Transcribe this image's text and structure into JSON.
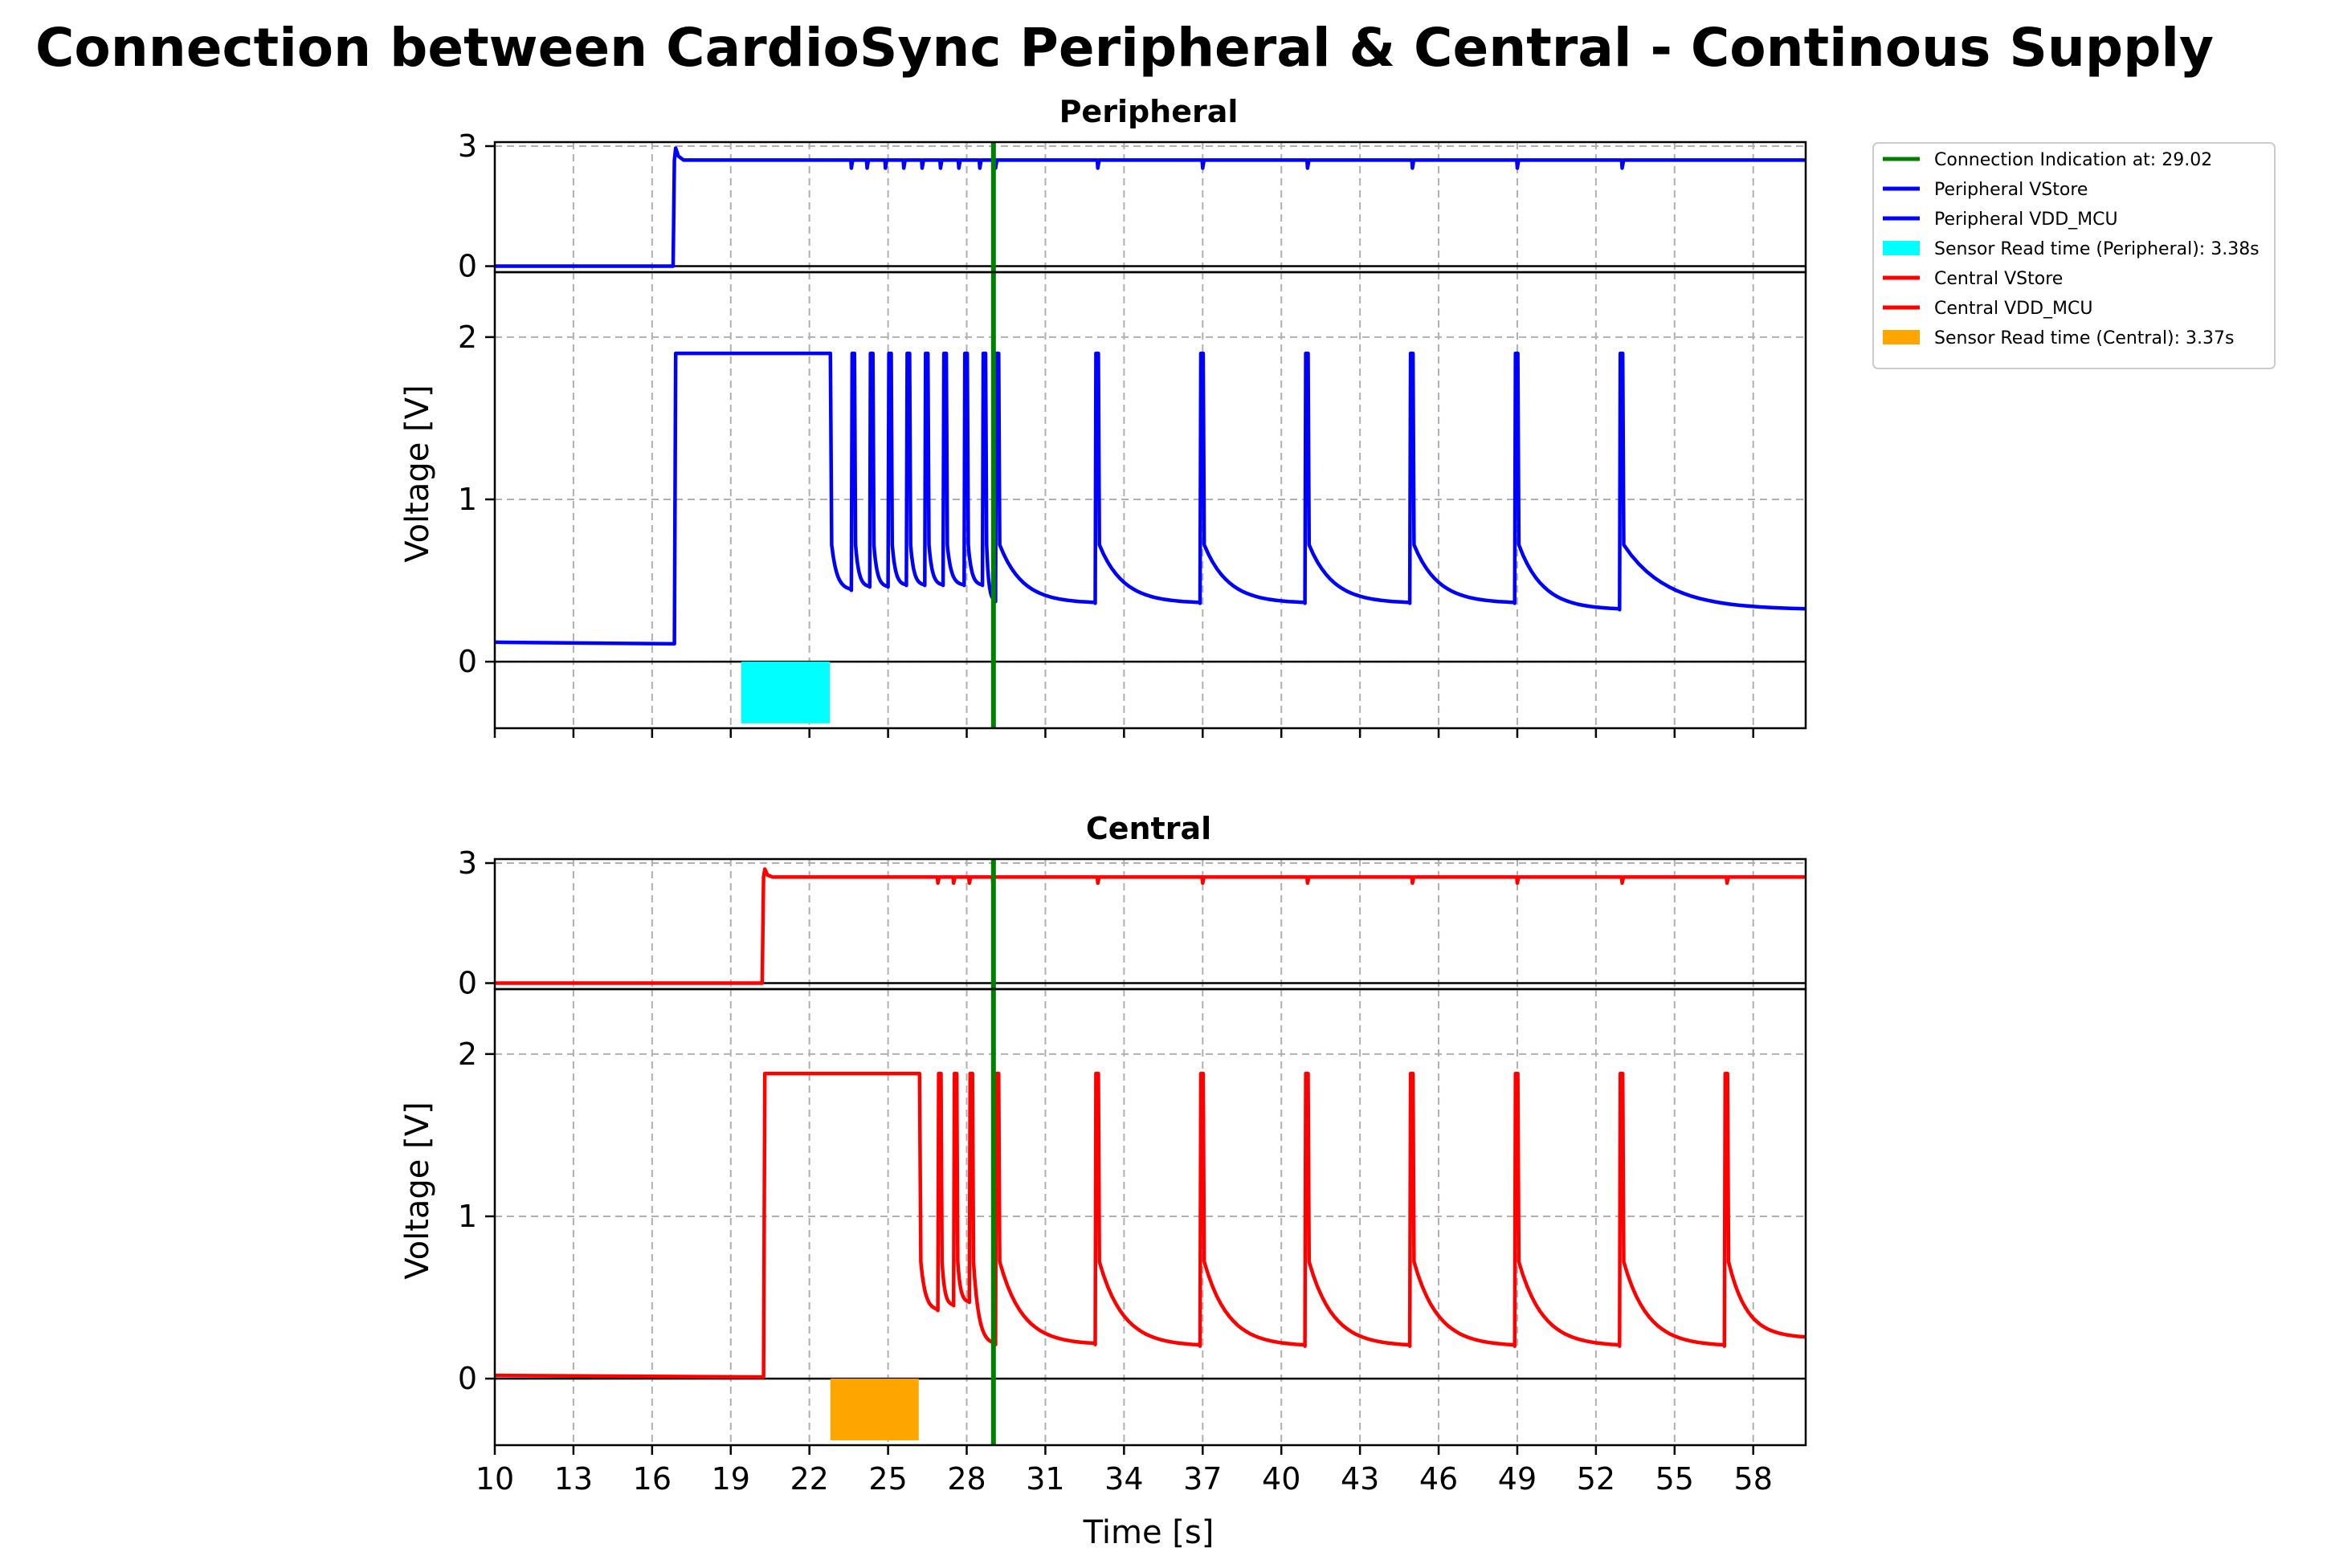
{
  "chart_data": {
    "type": "line",
    "title": "Connection between CardioSync Peripheral & Central - Continous Supply",
    "xlabel": "Time [s]",
    "ylabel": "Voltage [V]",
    "xlim": [
      10,
      60
    ],
    "x_ticks": [
      10,
      13,
      16,
      19,
      22,
      25,
      28,
      31,
      34,
      37,
      40,
      43,
      46,
      49,
      52,
      55,
      58
    ],
    "grid": true,
    "legend_position": "outside top-right",
    "connection": {
      "label": "Connection Indication at: 29.02",
      "x": 29.02,
      "color": "#008000"
    },
    "legend": [
      {
        "label": "Connection Indication at: 29.02",
        "color": "#008000",
        "kind": "line"
      },
      {
        "label": "Peripheral VStore",
        "color": "#0000ff",
        "kind": "line"
      },
      {
        "label": "Peripheral VDD_MCU",
        "color": "#0000ff",
        "kind": "line"
      },
      {
        "label": "Sensor Read time (Peripheral): 3.38s",
        "color": "#00ffff",
        "kind": "patch"
      },
      {
        "label": "Central VStore",
        "color": "#ff0000",
        "kind": "line"
      },
      {
        "label": "Central VDD_MCU",
        "color": "#ff0000",
        "kind": "line"
      },
      {
        "label": "Sensor Read time (Central): 3.37s",
        "color": "#ffa500",
        "kind": "patch"
      }
    ],
    "panels": [
      {
        "title": "Peripheral",
        "color": "#0000ff",
        "vstore": {
          "name": "Peripheral VStore",
          "ylim": [
            -0.15,
            3.1
          ],
          "y_ticks": [
            0,
            3
          ],
          "level": 2.65,
          "x": [
            10,
            16.8,
            16.85,
            16.9,
            17.0,
            17.2,
            60
          ],
          "y": [
            0.0,
            0.0,
            2.65,
            2.95,
            2.75,
            2.65,
            2.65
          ],
          "dips": [
            23.6,
            24.2,
            24.9,
            25.6,
            26.3,
            27.0,
            27.7,
            28.5,
            29.1,
            33.0,
            37.0,
            41.0,
            45.0,
            49.0,
            53.0
          ],
          "dip_value": 2.45
        },
        "vdd": {
          "name": "Peripheral VDD_MCU",
          "ylim": [
            -0.41,
            2.4
          ],
          "y_ticks": [
            0,
            1,
            2
          ],
          "start": 0.12,
          "base": 0.11,
          "rise": 16.9,
          "high": 1.9,
          "high_end": 22.8,
          "pulses": [
            {
              "t": 23.6,
              "after": 0.72,
              "min": 0.44
            },
            {
              "t": 24.3,
              "after": 0.72,
              "min": 0.46
            },
            {
              "t": 25.0,
              "after": 0.72,
              "min": 0.46
            },
            {
              "t": 25.7,
              "after": 0.72,
              "min": 0.47
            },
            {
              "t": 26.4,
              "after": 0.72,
              "min": 0.47
            },
            {
              "t": 27.1,
              "after": 0.72,
              "min": 0.47
            },
            {
              "t": 27.9,
              "after": 0.72,
              "min": 0.47
            },
            {
              "t": 28.6,
              "after": 0.72,
              "min": 0.47
            },
            {
              "t": 29.1,
              "after": 0.72,
              "min": 0.37
            },
            {
              "t": 32.9,
              "after": 0.72,
              "min": 0.36
            },
            {
              "t": 36.9,
              "after": 0.72,
              "min": 0.36
            },
            {
              "t": 40.9,
              "after": 0.72,
              "min": 0.36
            },
            {
              "t": 44.9,
              "after": 0.72,
              "min": 0.36
            },
            {
              "t": 48.9,
              "after": 0.72,
              "min": 0.36
            },
            {
              "t": 52.9,
              "after": 0.72,
              "min": 0.32
            }
          ],
          "end_value": 0.32,
          "sensor_read": {
            "label": "Sensor Read time (Peripheral): 3.38s",
            "x0": 19.4,
            "x1": 22.78,
            "y0": -0.38,
            "y1": 0.0,
            "color": "#00ffff"
          }
        }
      },
      {
        "title": "Central",
        "color": "#ff0000",
        "vstore": {
          "name": "Central VStore",
          "ylim": [
            -0.15,
            3.1
          ],
          "y_ticks": [
            0,
            3
          ],
          "level": 2.65,
          "x": [
            10,
            20.2,
            20.25,
            20.3,
            20.4,
            20.6,
            60
          ],
          "y": [
            0.0,
            0.0,
            2.65,
            2.85,
            2.7,
            2.65,
            2.65
          ],
          "dips": [
            26.9,
            27.5,
            28.1,
            29.0,
            33.0,
            37.0,
            41.0,
            45.0,
            49.0,
            53.0,
            57.0
          ],
          "dip_value": 2.5
        },
        "vdd": {
          "name": "Central VDD_MCU",
          "ylim": [
            -0.41,
            2.4
          ],
          "y_ticks": [
            0,
            1,
            2
          ],
          "start": 0.02,
          "base": 0.01,
          "rise": 20.3,
          "high": 1.88,
          "high_end": 26.2,
          "pulses": [
            {
              "t": 26.9,
              "after": 0.72,
              "min": 0.42
            },
            {
              "t": 27.5,
              "after": 0.72,
              "min": 0.45
            },
            {
              "t": 28.1,
              "after": 0.72,
              "min": 0.47
            },
            {
              "t": 29.1,
              "after": 0.72,
              "min": 0.21
            },
            {
              "t": 32.9,
              "after": 0.72,
              "min": 0.21
            },
            {
              "t": 36.9,
              "after": 0.72,
              "min": 0.2
            },
            {
              "t": 40.9,
              "after": 0.72,
              "min": 0.2
            },
            {
              "t": 44.9,
              "after": 0.72,
              "min": 0.2
            },
            {
              "t": 48.9,
              "after": 0.72,
              "min": 0.2
            },
            {
              "t": 52.9,
              "after": 0.72,
              "min": 0.2
            },
            {
              "t": 56.9,
              "after": 0.72,
              "min": 0.2
            }
          ],
          "end_value": 0.25,
          "sensor_read": {
            "label": "Sensor Read time (Central): 3.37s",
            "x0": 22.8,
            "x1": 26.17,
            "y0": -0.38,
            "y1": 0.0,
            "color": "#ffa500"
          }
        }
      }
    ]
  }
}
